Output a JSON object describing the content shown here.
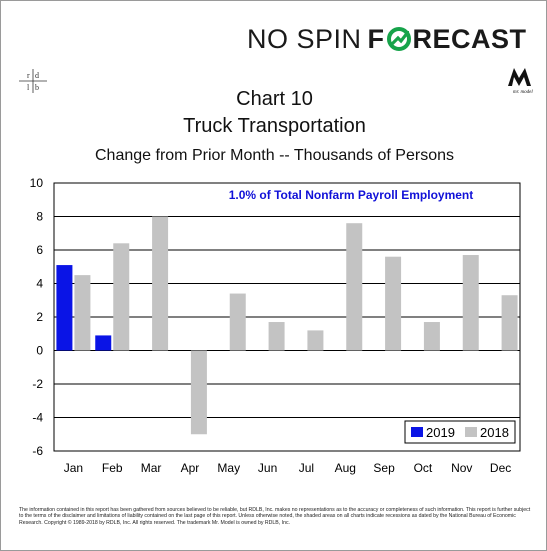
{
  "branding": {
    "no_spin": "NO SPIN",
    "forecast_f": "F",
    "forecast_rest": "RECAST",
    "rdlb_logo": "rd lb",
    "mr_model_logo": "M",
    "mr_model_caption": "Mr. Model"
  },
  "colors": {
    "series_2019": "#0a14e6",
    "series_2018": "#c3c3c3",
    "annotation": "#1010d8",
    "logo_green": "#16a34a"
  },
  "chart_data": {
    "type": "bar",
    "title": "Chart 10",
    "subtitle": "Truck Transportation",
    "description": "Change from Prior Month -- Thousands of Persons",
    "annotation": "1.0% of Total Nonfarm Payroll Employment",
    "categories": [
      "Jan",
      "Feb",
      "Mar",
      "Apr",
      "May",
      "Jun",
      "Jul",
      "Aug",
      "Sep",
      "Oct",
      "Nov",
      "Dec"
    ],
    "series": [
      {
        "name": "2019",
        "color": "#0a14e6",
        "values": [
          5.1,
          0.9,
          null,
          null,
          null,
          null,
          null,
          null,
          null,
          null,
          null,
          null
        ]
      },
      {
        "name": "2018",
        "color": "#c3c3c3",
        "values": [
          4.5,
          6.4,
          8.0,
          -5.0,
          3.4,
          1.7,
          1.2,
          7.6,
          5.6,
          1.7,
          5.7,
          3.3
        ]
      }
    ],
    "ylim": [
      -6,
      10
    ],
    "yticks": [
      "-6",
      "-4",
      "-2",
      "0",
      "2",
      "4",
      "6",
      "8",
      "10"
    ],
    "grid": true,
    "legend_position": "bottom-right"
  },
  "disclaimer": "The information contained in this report has been gathered from sources believed to be reliable, but RDLB, Inc. makes no representations as to the accuracy or completeness of such information. This report is further subject to the terms of the disclaimer and limitations of liability contained on the last page of this report. Unless otherwise noted, the shaded areas on all charts indicate recessions as dated by the National Bureau of Economic Research. Copyright © 1989-2018 by RDLB, Inc. All rights reserved. The trademark Mr. Model is owned by RDLB, Inc."
}
